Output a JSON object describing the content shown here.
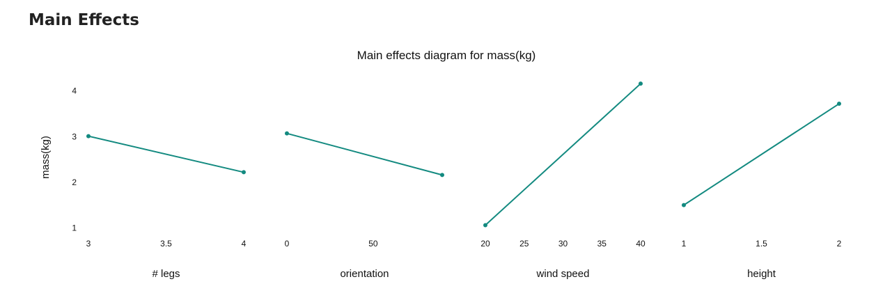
{
  "page": {
    "heading": "Main Effects"
  },
  "colors": {
    "line": "#138a80",
    "text": "#111111"
  },
  "chart_data": {
    "type": "line",
    "title": "Main effects diagram for mass(kg)",
    "ylabel": "mass(kg)",
    "ylim": [
      0.9,
      4.3
    ],
    "yticks": [
      1,
      2,
      3,
      4
    ],
    "grid": false,
    "panels": [
      {
        "xlabel": "# legs",
        "xlim": [
          3,
          4
        ],
        "xticks": [
          3,
          3.5,
          4
        ],
        "points": [
          {
            "x": 3,
            "y": 3.01
          },
          {
            "x": 4,
            "y": 2.22
          }
        ]
      },
      {
        "xlabel": "orientation",
        "xlim": [
          0,
          90
        ],
        "xticks": [
          0,
          50
        ],
        "points": [
          {
            "x": 0,
            "y": 3.07
          },
          {
            "x": 90,
            "y": 2.16
          }
        ]
      },
      {
        "xlabel": "wind speed",
        "xlim": [
          20,
          40
        ],
        "xticks": [
          20,
          25,
          30,
          35,
          40
        ],
        "points": [
          {
            "x": 20,
            "y": 1.06
          },
          {
            "x": 40,
            "y": 4.16
          }
        ]
      },
      {
        "xlabel": "height",
        "xlim": [
          1,
          2
        ],
        "xticks": [
          1,
          1.5,
          2
        ],
        "points": [
          {
            "x": 1,
            "y": 1.5
          },
          {
            "x": 2,
            "y": 3.72
          }
        ]
      }
    ]
  }
}
